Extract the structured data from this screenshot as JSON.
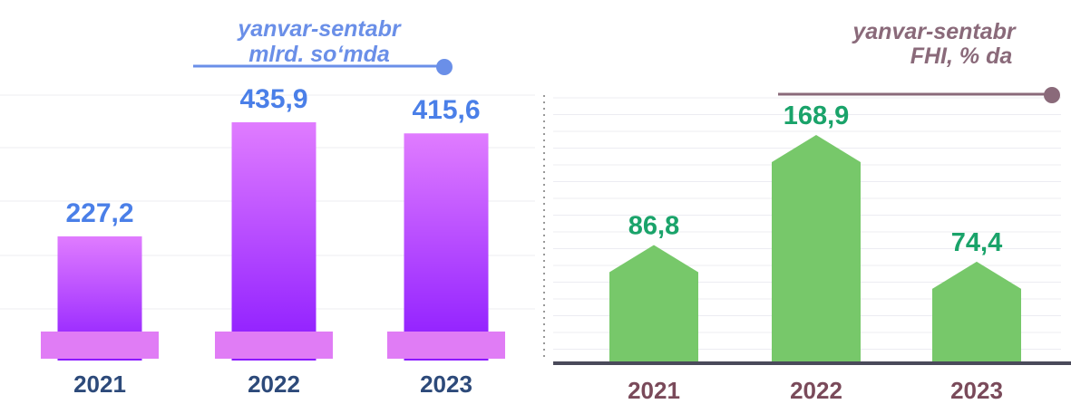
{
  "chart_data": [
    {
      "type": "bar",
      "title": "yanvar-sentabr",
      "subtitle": "mlrd. so‘mda",
      "categories": [
        "2021",
        "2022",
        "2023"
      ],
      "values": [
        227.2,
        435.9,
        415.6
      ],
      "value_labels": [
        "227,2",
        "435,9",
        "415,6"
      ],
      "color": "#a030ff"
    },
    {
      "type": "arrow",
      "title": "yanvar-sentabr",
      "subtitle": "FHI, % da",
      "categories": [
        "2021",
        "2022",
        "2023"
      ],
      "values": [
        86.8,
        168.9,
        74.4
      ],
      "value_labels": [
        "86,8",
        "168,9",
        "74,4"
      ],
      "color": "#77c86a"
    }
  ]
}
